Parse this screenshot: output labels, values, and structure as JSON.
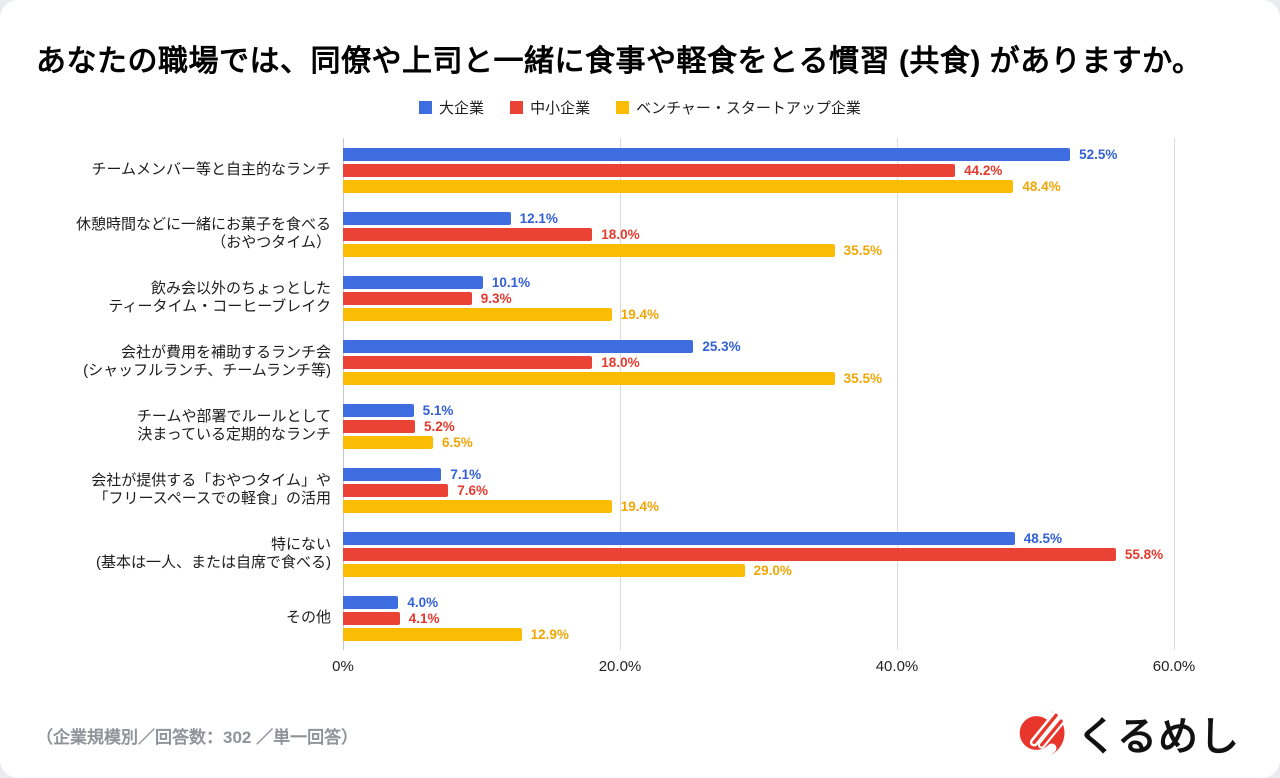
{
  "page": {
    "title": "あなたの職場では、同僚や上司と一緒に食事や軽食をとる慣習 (共食) がありますか。",
    "footer_note": "（企業規模別／回答数：302 ／単一回答）",
    "brand": {
      "logo_icon": "kurumeshi-logo",
      "logo_text": "くるめし"
    }
  },
  "chart_data": {
    "type": "bar",
    "orientation": "horizontal",
    "title": "あなたの職場では、同僚や上司と一緒に食事や軽食をとる慣習 (共食) がありますか。",
    "xlim": [
      0,
      60
    ],
    "grid": true,
    "legend_position": "top",
    "x_ticks": [
      {
        "value": 0,
        "label": "0%"
      },
      {
        "value": 20,
        "label": "20.0%"
      },
      {
        "value": 40,
        "label": "40.0%"
      },
      {
        "value": 60,
        "label": "60.0%"
      }
    ],
    "categories": [
      {
        "lines": [
          "チームメンバー等と自主的なランチ"
        ]
      },
      {
        "lines": [
          "休憩時間などに一緒にお菓子を食べる",
          "（おやつタイム）"
        ]
      },
      {
        "lines": [
          "飲み会以外のちょっとした",
          "ティータイム・コーヒーブレイク"
        ]
      },
      {
        "lines": [
          "会社が費用を補助するランチ会",
          "(シャッフルランチ、チームランチ等)"
        ]
      },
      {
        "lines": [
          "チームや部署でルールとして",
          "決まっている定期的なランチ"
        ]
      },
      {
        "lines": [
          "会社が提供する「おやつタイム」や",
          "「フリースペースでの軽食」の活用"
        ]
      },
      {
        "lines": [
          "特にない",
          "(基本は一人、または自席で食べる)"
        ]
      },
      {
        "lines": [
          "その他"
        ]
      }
    ],
    "series": [
      {
        "name": "大企業",
        "color": "#3e6de0",
        "label_color": "#3260d6",
        "values": [
          52.5,
          12.1,
          10.1,
          25.3,
          5.1,
          7.1,
          48.5,
          4.0
        ]
      },
      {
        "name": "中小企業",
        "color": "#ea4335",
        "label_color": "#e43a2d",
        "values": [
          44.2,
          18.0,
          9.3,
          18.0,
          5.2,
          7.6,
          55.8,
          4.1
        ]
      },
      {
        "name": "ベンチャー・スタートアップ企業",
        "color": "#fbbc04",
        "label_color": "#f0a606",
        "values": [
          48.4,
          35.5,
          19.4,
          35.5,
          6.5,
          19.4,
          29.0,
          12.9
        ]
      }
    ],
    "value_label_format": "percent_one_decimal"
  }
}
